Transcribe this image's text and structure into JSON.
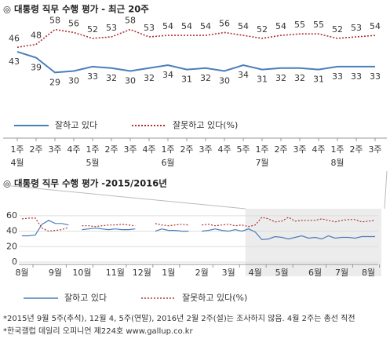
{
  "chart_data": [
    {
      "type": "line",
      "title": "◎  대통령 직무 수행 평가 - 최근 20주",
      "categories": [
        "1주",
        "2주",
        "3주",
        "4주",
        "1주",
        "2주",
        "3주",
        "4주",
        "1주",
        "2주",
        "3주",
        "4주",
        "5주",
        "1주",
        "2주",
        "3주",
        "4주",
        "1주",
        "2주",
        "3주"
      ],
      "months": [
        "4월",
        null,
        null,
        null,
        "5월",
        null,
        null,
        null,
        "6월",
        null,
        null,
        null,
        null,
        "7월",
        null,
        null,
        null,
        "8월",
        null,
        null
      ],
      "series": [
        {
          "name": "잘하고 있다",
          "color": "#4a7ebb",
          "values": [
            43,
            39,
            29,
            30,
            33,
            32,
            30,
            32,
            34,
            31,
            32,
            30,
            34,
            31,
            32,
            32,
            31,
            33,
            33,
            33
          ]
        },
        {
          "name": "잘못하고 있다(%)",
          "color": "#b03030",
          "values": [
            46,
            48,
            58,
            56,
            52,
            53,
            58,
            53,
            54,
            54,
            54,
            56,
            54,
            52,
            54,
            55,
            55,
            52,
            53,
            54
          ]
        }
      ],
      "ylim": [
        25,
        62
      ]
    },
    {
      "type": "line",
      "title": "◎  대통령 직무 수행 평가 -2015/2016년",
      "categories": [
        "8월",
        null,
        null,
        null,
        null,
        "9월",
        null,
        null,
        null,
        "10월",
        null,
        null,
        null,
        null,
        "11월",
        null,
        null,
        null,
        "12월",
        null,
        null,
        null,
        "1월",
        null,
        null,
        null,
        null,
        "2월",
        null,
        null,
        null,
        "3월",
        null,
        null,
        null,
        "4월",
        null,
        null,
        null,
        "5월",
        null,
        null,
        null,
        null,
        "6월",
        null,
        null,
        null,
        "7월",
        null,
        null,
        null,
        "8월",
        null
      ],
      "series": [
        {
          "name": "잘하고 있다",
          "color": "#4a7ebb",
          "values": [
            34,
            34,
            35,
            49,
            54,
            50,
            50,
            48,
            null,
            42,
            43,
            44,
            43,
            42,
            43,
            42,
            42,
            43,
            null,
            null,
            40,
            43,
            41,
            41,
            40,
            40,
            null,
            40,
            41,
            43,
            41,
            40,
            42,
            40,
            43,
            39,
            29,
            30,
            33,
            32,
            30,
            32,
            34,
            31,
            32,
            30,
            34,
            31,
            32,
            32,
            31,
            33,
            33,
            33
          ]
        },
        {
          "name": "잘못하고 있다(%)",
          "color": "#b03030",
          "values": [
            56,
            57,
            57,
            44,
            40,
            41,
            42,
            45,
            null,
            47,
            47,
            46,
            47,
            48,
            48,
            49,
            48,
            47,
            null,
            null,
            50,
            48,
            47,
            48,
            49,
            48,
            null,
            48,
            49,
            47,
            48,
            49,
            47,
            48,
            46,
            48,
            58,
            56,
            52,
            53,
            58,
            53,
            54,
            54,
            54,
            56,
            54,
            52,
            54,
            55,
            55,
            52,
            53,
            54
          ]
        }
      ],
      "ylim": [
        0,
        65
      ],
      "yticks": [
        0,
        20,
        40,
        60
      ],
      "grid": true
    }
  ],
  "notes": [
    "*2015년 9월 5주(추석), 12월 4, 5주(연말), 2016년 2월 2주(설)는 조사하지 않음. 4월 2주는 총선 직전",
    "*한국갤럽 데일리 오피니언 제224호 www.gallup.co.kr"
  ]
}
